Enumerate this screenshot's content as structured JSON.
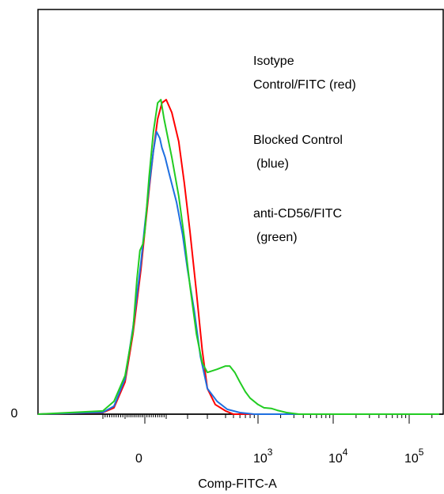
{
  "chart_data": {
    "type": "line",
    "title": "",
    "xlabel": "Comp-FITC-A",
    "ylabel": "",
    "x_scale": "biexponential",
    "xlim": [
      -200,
      250000
    ],
    "y_tick_labels": [
      {
        "value": 0,
        "label": "0"
      }
    ],
    "x_tick_labels": [
      {
        "value": 0,
        "label": "0",
        "exp": ""
      },
      {
        "value": 1000,
        "label": "10",
        "exp": "3"
      },
      {
        "value": 10000,
        "label": "10",
        "exp": "4"
      },
      {
        "value": 100000,
        "label": "10",
        "exp": "5"
      }
    ],
    "legend_placement": "top-right",
    "grid": false,
    "series": [
      {
        "name": "Isotype Control/FITC (red)",
        "color": "#ff0000",
        "points": [
          [
            -300,
            0
          ],
          [
            -200,
            0.5
          ],
          [
            -150,
            2
          ],
          [
            -100,
            10
          ],
          [
            -60,
            25
          ],
          [
            -20,
            45
          ],
          [
            0,
            57
          ],
          [
            20,
            70
          ],
          [
            40,
            82
          ],
          [
            60,
            92
          ],
          [
            80,
            97
          ],
          [
            100,
            98
          ],
          [
            120,
            94
          ],
          [
            150,
            85
          ],
          [
            180,
            72
          ],
          [
            210,
            57
          ],
          [
            240,
            38
          ],
          [
            270,
            20
          ],
          [
            300,
            8
          ],
          [
            340,
            3
          ],
          [
            400,
            1
          ],
          [
            500,
            0
          ],
          [
            250000,
            0
          ]
        ]
      },
      {
        "name": "Blocked Control (blue)",
        "color": "#1e6fe0",
        "points": [
          [
            -300,
            0
          ],
          [
            -200,
            0.6
          ],
          [
            -150,
            2.5
          ],
          [
            -100,
            11
          ],
          [
            -60,
            27
          ],
          [
            -20,
            47
          ],
          [
            0,
            59
          ],
          [
            20,
            71
          ],
          [
            40,
            82
          ],
          [
            55,
            88
          ],
          [
            70,
            86
          ],
          [
            80,
            83
          ],
          [
            95,
            80
          ],
          [
            110,
            75
          ],
          [
            140,
            66
          ],
          [
            170,
            56
          ],
          [
            200,
            45
          ],
          [
            230,
            32
          ],
          [
            260,
            18
          ],
          [
            300,
            8
          ],
          [
            350,
            4
          ],
          [
            420,
            1.5
          ],
          [
            600,
            0.5
          ],
          [
            900,
            0
          ],
          [
            250000,
            0
          ]
        ]
      },
      {
        "name": "anti-CD56/FITC (green)",
        "color": "#22cc22",
        "points": [
          [
            -300,
            0
          ],
          [
            -200,
            1
          ],
          [
            -150,
            4
          ],
          [
            -100,
            12
          ],
          [
            -60,
            26
          ],
          [
            -40,
            42
          ],
          [
            -25,
            51
          ],
          [
            -10,
            53
          ],
          [
            0,
            57
          ],
          [
            20,
            74
          ],
          [
            40,
            88
          ],
          [
            60,
            97
          ],
          [
            75,
            98
          ],
          [
            90,
            92
          ],
          [
            120,
            80
          ],
          [
            150,
            68
          ],
          [
            180,
            55
          ],
          [
            210,
            40
          ],
          [
            240,
            25
          ],
          [
            270,
            16
          ],
          [
            300,
            13
          ],
          [
            350,
            14
          ],
          [
            400,
            15
          ],
          [
            450,
            15
          ],
          [
            520,
            13
          ],
          [
            600,
            10
          ],
          [
            700,
            7
          ],
          [
            800,
            5
          ],
          [
            1000,
            3
          ],
          [
            1200,
            2
          ],
          [
            1500,
            1.8
          ],
          [
            1800,
            1.2
          ],
          [
            2400,
            0.5
          ],
          [
            3500,
            0
          ],
          [
            250000,
            0
          ]
        ]
      }
    ],
    "ylim": [
      0,
      100
    ]
  }
}
